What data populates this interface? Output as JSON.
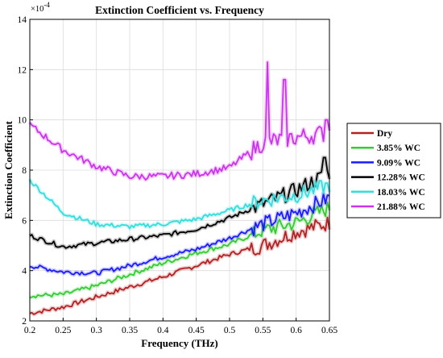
{
  "chart_data": {
    "type": "line",
    "title": "Extinction Coefficient vs. Frequency",
    "xlabel": "Frequency (THz)",
    "ylabel": "Extinction Coefficient",
    "y_multiplier_label": "×10",
    "y_multiplier_exponent": "-4",
    "xlim": [
      0.2,
      0.65
    ],
    "ylim": [
      2,
      14
    ],
    "grid": true,
    "legend_position": "outside-right",
    "x_ticks": [
      "0.2",
      "0.25",
      "0.3",
      "0.35",
      "0.4",
      "0.45",
      "0.5",
      "0.55",
      "0.6",
      "0.65"
    ],
    "y_ticks": [
      "2",
      "4",
      "6",
      "8",
      "10",
      "12",
      "14"
    ],
    "x": [
      0.2,
      0.25,
      0.3,
      0.35,
      0.4,
      0.45,
      0.5,
      0.55,
      0.6,
      0.65
    ],
    "series": [
      {
        "name": "Dry",
        "color": "#b22222",
        "values": [
          2.3,
          2.55,
          2.95,
          3.35,
          3.75,
          4.2,
          4.65,
          5.0,
          5.55,
          5.9
        ]
      },
      {
        "name": "3.85% WC",
        "color": "#33cc33",
        "values": [
          3.0,
          3.05,
          3.4,
          3.85,
          4.3,
          4.7,
          5.05,
          5.6,
          5.9,
          6.5
        ]
      },
      {
        "name": "9.09% WC",
        "color": "#1a1aff",
        "values": [
          4.2,
          3.95,
          3.9,
          4.2,
          4.55,
          4.85,
          5.3,
          5.85,
          6.3,
          6.9
        ]
      },
      {
        "name": "12.28% WC",
        "color": "#000000",
        "values": [
          5.4,
          4.95,
          5.1,
          5.25,
          5.4,
          5.65,
          6.1,
          6.65,
          7.2,
          7.9
        ]
      },
      {
        "name": "18.03% WC",
        "color": "#33dddd",
        "values": [
          7.6,
          6.3,
          5.85,
          5.75,
          5.85,
          6.05,
          6.4,
          6.8,
          7.0,
          7.4
        ]
      },
      {
        "name": "21.88% WC",
        "color": "#cc33ee",
        "values": [
          9.8,
          8.8,
          8.15,
          7.75,
          7.75,
          7.85,
          8.1,
          9.1,
          9.3,
          9.5
        ]
      }
    ]
  }
}
